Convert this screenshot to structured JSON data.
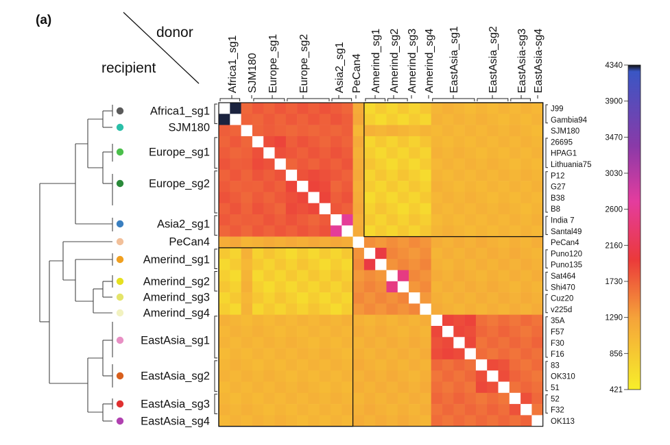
{
  "chart_data": {
    "type": "heatmap",
    "panel_label": "(a)",
    "corner_labels": {
      "donor": "donor",
      "recipient": "recipient"
    },
    "donor_groups": [
      "Africa1_sg1",
      "SJM180",
      "Europe_sg1",
      "Europe_sg2",
      "Asia2_sg1",
      "PeCan4",
      "Amerind_sg1",
      "Amerind_sg2",
      "Amerind_sg3",
      "Amerind_sg4",
      "EastAsia_sg1",
      "EastAsia_sg2",
      "EastAsia-sg3",
      "EastAsia-sg4"
    ],
    "recipient_groups": [
      {
        "name": "Africa1_sg1",
        "color": "#5a5a5a"
      },
      {
        "name": "SJM180",
        "color": "#2bbfa8"
      },
      {
        "name": "Europe_sg1",
        "color": "#4bbf4b"
      },
      {
        "name": "Europe_sg2",
        "color": "#2a8a3a"
      },
      {
        "name": "Asia2_sg1",
        "color": "#3a7fc0"
      },
      {
        "name": "PeCan4",
        "color": "#f2c09a"
      },
      {
        "name": "Amerind_sg1",
        "color": "#f0a020"
      },
      {
        "name": "Amerind_sg2",
        "color": "#e6e020"
      },
      {
        "name": "Amerind_sg3",
        "color": "#e4e46a"
      },
      {
        "name": "Amerind_sg4",
        "color": "#f2f2c0"
      },
      {
        "name": "EastAsia_sg1",
        "color": "#e890c4"
      },
      {
        "name": "EastAsia_sg2",
        "color": "#d8601e"
      },
      {
        "name": "EastAsia_sg3",
        "color": "#e03030"
      },
      {
        "name": "EastAsia_sg4",
        "color": "#b040b0"
      }
    ],
    "strains": [
      "J99",
      "Gambia94",
      "SJM180",
      "26695",
      "HPAG1",
      "Lithuania75",
      "P12",
      "G27",
      "B38",
      "B8",
      "India 7",
      "Santal49",
      "PeCan4",
      "Puno120",
      "Puno135",
      "Sat464",
      "Shi470",
      "Cuz20",
      "v225d",
      "35A",
      "F57",
      "F30",
      "F16",
      "83",
      "OK310",
      "51",
      "52",
      "F32",
      "OK113"
    ],
    "colorbar": {
      "ticks": [
        "4340",
        "3900",
        "3470",
        "3030",
        "2600",
        "2160",
        "1730",
        "1290",
        "856",
        "421"
      ],
      "min": 421,
      "max": 4340
    }
  },
  "colors": {
    "low": "#f7ef2a",
    "mid_low": "#f5a33a",
    "mid": "#eb3a3a",
    "high_pink": "#e43c9e",
    "high_purple": "#7a3aa5",
    "top": "#3a56c4"
  }
}
